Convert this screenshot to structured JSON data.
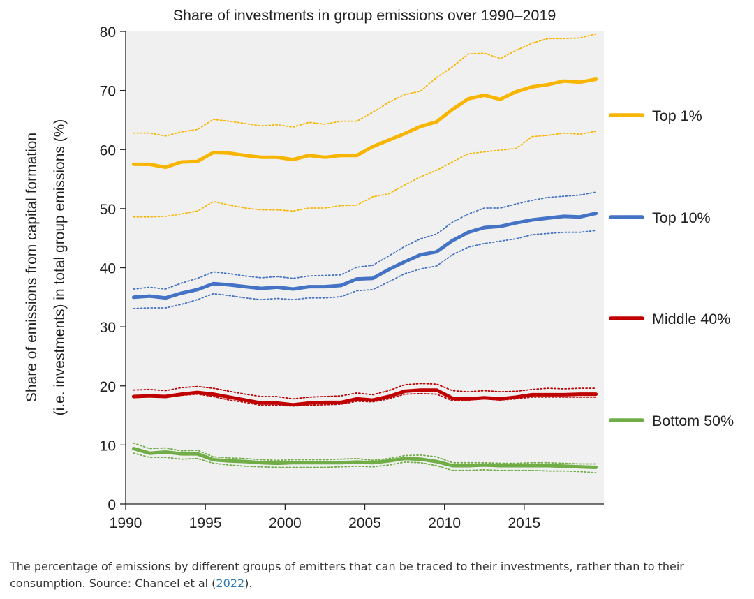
{
  "chart_data": {
    "type": "line",
    "title": "Share of investments in group emissions over 1990–2019",
    "ylabel_line1": "Share of emissions from capital formation",
    "ylabel_line2": "(i.e. investments) in total group emissions (%)",
    "xlabel": "",
    "xlim": [
      1990,
      2020
    ],
    "ylim": [
      0,
      80
    ],
    "x_ticks": [
      1990,
      1995,
      2000,
      2005,
      2010,
      2015
    ],
    "y_ticks": [
      0,
      10,
      20,
      30,
      40,
      50,
      60,
      70,
      80
    ],
    "grid": false,
    "legend_position": "right",
    "x": [
      1990.5,
      1991.5,
      1992.5,
      1993.5,
      1994.5,
      1995.5,
      1996.5,
      1997.5,
      1998.5,
      1999.5,
      2000.5,
      2001.5,
      2002.5,
      2003.5,
      2004.5,
      2005.5,
      2006.5,
      2007.5,
      2008.5,
      2009.5,
      2010.5,
      2011.5,
      2012.5,
      2013.5,
      2014.5,
      2015.5,
      2016.5,
      2017.5,
      2018.5,
      2019.5
    ],
    "series": [
      {
        "name": "Top 1%",
        "color": "#f7b500",
        "values": [
          57.5,
          57.5,
          57.0,
          57.9,
          58.0,
          59.5,
          59.4,
          59.0,
          58.7,
          58.7,
          58.3,
          59.0,
          58.7,
          59.0,
          59.0,
          60.5,
          61.6,
          62.7,
          63.9,
          64.7,
          66.8,
          68.6,
          69.2,
          68.5,
          69.8,
          70.6,
          71.0,
          71.6,
          71.4,
          71.9
        ],
        "upper": [
          62.8,
          62.8,
          62.3,
          63.0,
          63.4,
          65.1,
          64.8,
          64.4,
          64.0,
          64.2,
          63.8,
          64.6,
          64.3,
          64.8,
          64.8,
          66.3,
          68.0,
          69.3,
          69.9,
          72.2,
          74.0,
          76.2,
          76.3,
          75.4,
          76.8,
          78.0,
          78.8,
          78.8,
          78.9,
          79.6
        ],
        "lower": [
          48.6,
          48.6,
          48.7,
          49.1,
          49.6,
          51.2,
          50.6,
          50.1,
          49.8,
          49.8,
          49.6,
          50.1,
          50.1,
          50.5,
          50.6,
          52.0,
          52.5,
          54.0,
          55.4,
          56.5,
          57.9,
          59.3,
          59.6,
          59.9,
          60.2,
          62.2,
          62.4,
          62.8,
          62.6,
          63.1
        ]
      },
      {
        "name": "Top 10%",
        "color": "#4472c4",
        "values": [
          35.0,
          35.2,
          34.9,
          35.7,
          36.3,
          37.3,
          37.1,
          36.8,
          36.5,
          36.7,
          36.4,
          36.8,
          36.8,
          37.0,
          38.1,
          38.2,
          39.7,
          41.0,
          42.2,
          42.7,
          44.6,
          46.0,
          46.8,
          47.0,
          47.6,
          48.1,
          48.4,
          48.7,
          48.6,
          49.2
        ],
        "upper": [
          36.4,
          36.7,
          36.4,
          37.4,
          38.2,
          39.3,
          39.0,
          38.6,
          38.3,
          38.5,
          38.2,
          38.6,
          38.7,
          38.8,
          40.1,
          40.4,
          42.0,
          43.6,
          44.9,
          45.7,
          47.7,
          49.1,
          50.1,
          50.1,
          50.8,
          51.4,
          51.9,
          52.1,
          52.3,
          52.8
        ],
        "lower": [
          33.1,
          33.2,
          33.2,
          33.8,
          34.6,
          35.6,
          35.3,
          34.9,
          34.6,
          34.8,
          34.6,
          34.9,
          34.9,
          35.1,
          36.1,
          36.3,
          37.6,
          39.0,
          39.8,
          40.3,
          42.2,
          43.5,
          44.1,
          44.5,
          44.9,
          45.6,
          45.8,
          46.0,
          46.0,
          46.3
        ]
      },
      {
        "name": "Middle 40%",
        "color": "#c00000",
        "values": [
          18.2,
          18.3,
          18.2,
          18.6,
          18.9,
          18.6,
          18.1,
          17.6,
          17.1,
          17.1,
          16.8,
          17.1,
          17.2,
          17.2,
          17.8,
          17.6,
          18.2,
          19.1,
          19.3,
          19.3,
          17.9,
          17.8,
          18.0,
          17.8,
          18.1,
          18.5,
          18.5,
          18.5,
          18.6,
          18.6
        ],
        "upper": [
          19.3,
          19.4,
          19.2,
          19.7,
          19.9,
          19.6,
          19.1,
          18.6,
          18.2,
          18.2,
          17.8,
          18.1,
          18.2,
          18.3,
          18.8,
          18.5,
          19.2,
          20.2,
          20.4,
          20.3,
          19.2,
          19.0,
          19.2,
          19.0,
          19.1,
          19.4,
          19.6,
          19.5,
          19.6,
          19.6
        ],
        "lower": [
          18.0,
          18.2,
          18.2,
          18.4,
          18.6,
          18.2,
          17.6,
          17.2,
          16.7,
          16.7,
          16.6,
          16.7,
          16.8,
          16.9,
          17.4,
          17.3,
          17.8,
          18.6,
          18.7,
          18.6,
          17.5,
          17.6,
          17.8,
          17.6,
          17.8,
          18.1,
          18.1,
          18.1,
          18.1,
          18.1
        ]
      },
      {
        "name": "Bottom 50%",
        "color": "#70ad47",
        "values": [
          9.4,
          8.6,
          8.8,
          8.5,
          8.5,
          7.5,
          7.3,
          7.2,
          7.0,
          6.9,
          7.0,
          7.0,
          7.0,
          7.0,
          7.1,
          7.0,
          7.3,
          7.7,
          7.6,
          7.2,
          6.5,
          6.5,
          6.6,
          6.5,
          6.5,
          6.5,
          6.5,
          6.4,
          6.3,
          6.2
        ],
        "upper": [
          10.3,
          9.4,
          9.5,
          9.0,
          9.1,
          8.0,
          7.8,
          7.7,
          7.5,
          7.4,
          7.5,
          7.5,
          7.5,
          7.6,
          7.7,
          7.4,
          7.7,
          8.2,
          8.3,
          8.0,
          7.0,
          7.0,
          7.0,
          6.9,
          6.9,
          7.0,
          7.0,
          6.9,
          6.8,
          6.8
        ],
        "lower": [
          8.6,
          7.9,
          7.9,
          7.6,
          7.7,
          6.9,
          6.6,
          6.4,
          6.3,
          6.2,
          6.2,
          6.2,
          6.2,
          6.3,
          6.4,
          6.3,
          6.6,
          7.1,
          7.0,
          6.5,
          5.7,
          5.7,
          5.8,
          5.7,
          5.7,
          5.7,
          5.6,
          5.6,
          5.5,
          5.3
        ]
      }
    ]
  },
  "caption": {
    "text": "The percentage of emissions by different groups of emitters that can be traced to their investments, rather than to their consumption. Source: Chancel et al (",
    "link_text": "2022",
    "text_after": ")."
  }
}
